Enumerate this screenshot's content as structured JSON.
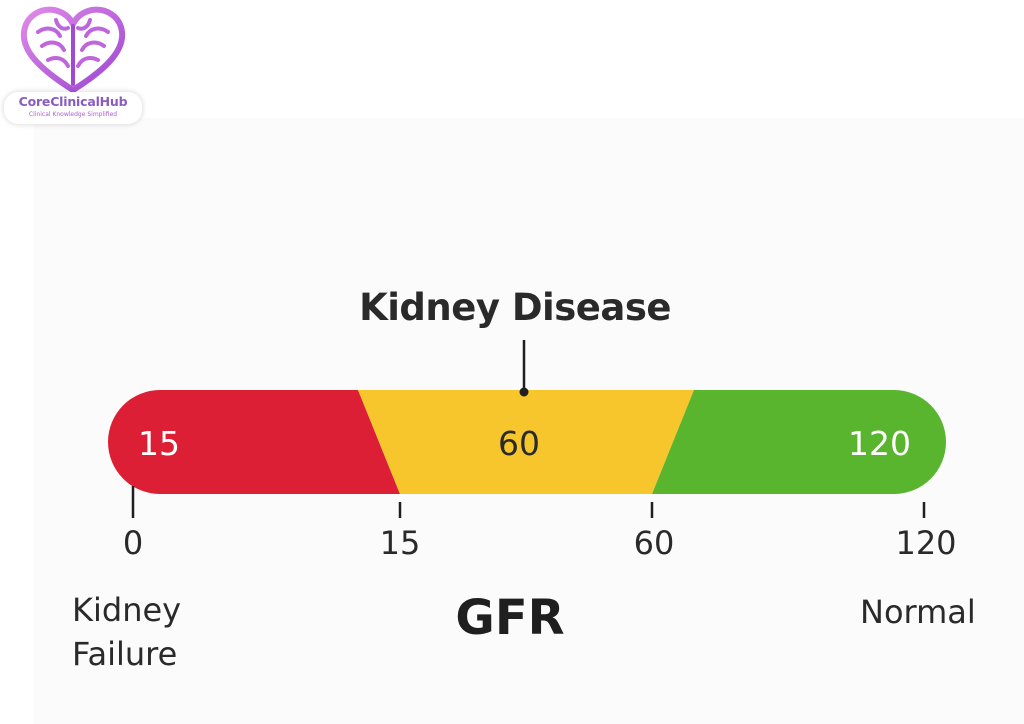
{
  "logo": {
    "name": "CoreClinicalHub",
    "tagline": "Clinical Knowledge Simplified",
    "icon": "heart-brain-icon",
    "colors": {
      "primary": "#b15ad8",
      "text": "#8a5cc0"
    }
  },
  "scale": {
    "title": "Kidney Disease",
    "axis_label": "GFR",
    "min_value": 0,
    "max_value": 120,
    "segments": [
      {
        "label": "15",
        "from": 0,
        "to": 15,
        "color": "#dc1f35"
      },
      {
        "label": "60",
        "from": 15,
        "to": 60,
        "color": "#f7c62c"
      },
      {
        "label": "120",
        "from": 60,
        "to": 120,
        "color": "#59b42e"
      }
    ],
    "ticks": [
      "0",
      "15",
      "60",
      "120"
    ],
    "left_label": [
      "Kidney",
      "Failure"
    ],
    "right_label": "Normal"
  }
}
